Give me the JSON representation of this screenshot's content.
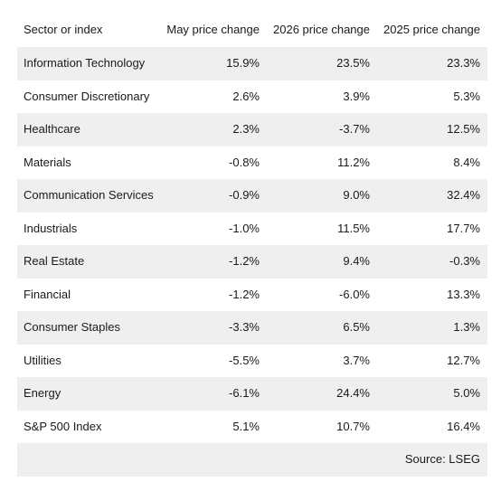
{
  "table": {
    "header": [
      "Sector or index",
      "May price change",
      "2026 price change",
      "2025 price change"
    ],
    "rows": [
      [
        "Information Technology",
        "15.9%",
        "23.5%",
        "23.3%"
      ],
      [
        "Consumer Discretionary",
        "2.6%",
        "3.9%",
        "5.3%"
      ],
      [
        "Healthcare",
        "2.3%",
        "-3.7%",
        "12.5%"
      ],
      [
        "Materials",
        "-0.8%",
        "11.2%",
        "8.4%"
      ],
      [
        "Communication Services",
        "-0.9%",
        "9.0%",
        "32.4%"
      ],
      [
        "Industrials",
        "-1.0%",
        "11.5%",
        "17.7%"
      ],
      [
        "Real Estate",
        "-1.2%",
        "9.4%",
        "-0.3%"
      ],
      [
        "Financial",
        "-1.2%",
        "-6.0%",
        "13.3%"
      ],
      [
        "Consumer Staples",
        "-3.3%",
        "6.5%",
        "1.3%"
      ],
      [
        "Utilities",
        "-5.5%",
        "3.7%",
        "12.7%"
      ],
      [
        "Energy",
        "-6.1%",
        "24.4%",
        "5.0%"
      ],
      [
        "S&P 500 Index",
        "5.1%",
        "10.7%",
        "16.4%"
      ]
    ],
    "source": "Source: LSEG"
  }
}
